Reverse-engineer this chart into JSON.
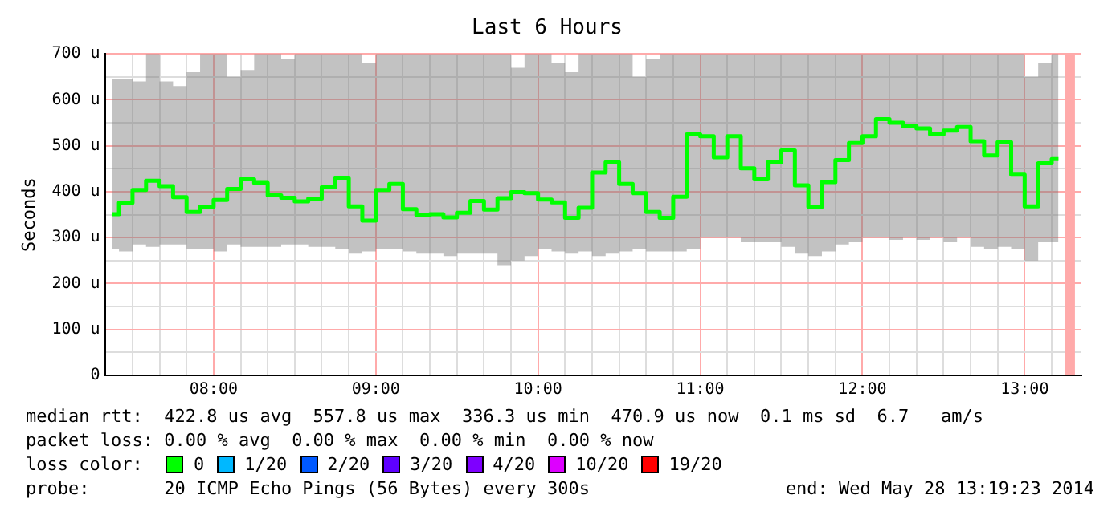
{
  "chart_data": {
    "type": "step",
    "title": "Last 6 Hours",
    "ylabel": "Seconds",
    "legend_title": "loss color:",
    "legend": "bottom",
    "grid": true,
    "xlim": [
      7.33,
      13.35
    ],
    "ylim": [
      0,
      700
    ],
    "xticks": [
      {
        "value": 7.5,
        "label": null
      },
      {
        "value": 7.6667,
        "label": null
      },
      {
        "value": 7.8333,
        "label": null
      },
      {
        "value": 8,
        "label": "08:00"
      },
      {
        "value": 8.1667,
        "label": null
      },
      {
        "value": 8.3333,
        "label": null
      },
      {
        "value": 8.5,
        "label": null
      },
      {
        "value": 8.6667,
        "label": null
      },
      {
        "value": 8.8333,
        "label": null
      },
      {
        "value": 9,
        "label": "09:00"
      },
      {
        "value": 9.1667,
        "label": null
      },
      {
        "value": 9.3333,
        "label": null
      },
      {
        "value": 9.5,
        "label": null
      },
      {
        "value": 9.6667,
        "label": null
      },
      {
        "value": 9.8333,
        "label": null
      },
      {
        "value": 10,
        "label": "10:00"
      },
      {
        "value": 10.1667,
        "label": null
      },
      {
        "value": 10.3333,
        "label": null
      },
      {
        "value": 10.5,
        "label": null
      },
      {
        "value": 10.6667,
        "label": null
      },
      {
        "value": 10.8333,
        "label": null
      },
      {
        "value": 11,
        "label": "11:00"
      },
      {
        "value": 11.1667,
        "label": null
      },
      {
        "value": 11.3333,
        "label": null
      },
      {
        "value": 11.5,
        "label": null
      },
      {
        "value": 11.6667,
        "label": null
      },
      {
        "value": 11.8333,
        "label": null
      },
      {
        "value": 12,
        "label": "12:00"
      },
      {
        "value": 12.1667,
        "label": null
      },
      {
        "value": 12.3333,
        "label": null
      },
      {
        "value": 12.5,
        "label": null
      },
      {
        "value": 12.6667,
        "label": null
      },
      {
        "value": 12.8333,
        "label": null
      },
      {
        "value": 13,
        "label": "13:00"
      },
      {
        "value": 13.1667,
        "label": null
      }
    ],
    "yticks": [
      {
        "value": 0,
        "label": "0"
      },
      {
        "value": 50,
        "label": null
      },
      {
        "value": 100,
        "label": "100 u"
      },
      {
        "value": 150,
        "label": null
      },
      {
        "value": 200,
        "label": "200 u"
      },
      {
        "value": 250,
        "label": null
      },
      {
        "value": 300,
        "label": "300 u"
      },
      {
        "value": 350,
        "label": null
      },
      {
        "value": 400,
        "label": "400 u"
      },
      {
        "value": 450,
        "label": null
      },
      {
        "value": 500,
        "label": "500 u"
      },
      {
        "value": 550,
        "label": null
      },
      {
        "value": 600,
        "label": "600 u"
      },
      {
        "value": 650,
        "label": null
      },
      {
        "value": 700,
        "label": "700 u"
      }
    ],
    "x": [
      7.375,
      7.4583,
      7.5417,
      7.625,
      7.7083,
      7.7917,
      7.875,
      7.9583,
      8.0417,
      8.125,
      8.2083,
      8.2917,
      8.375,
      8.4583,
      8.5417,
      8.625,
      8.7083,
      8.7917,
      8.875,
      8.9583,
      9.0417,
      9.125,
      9.2083,
      9.2917,
      9.375,
      9.4583,
      9.5417,
      9.625,
      9.7083,
      9.7917,
      9.875,
      9.9583,
      10.0417,
      10.125,
      10.2083,
      10.2917,
      10.375,
      10.4583,
      10.5417,
      10.625,
      10.7083,
      10.7917,
      10.875,
      10.9583,
      11.0417,
      11.125,
      11.2083,
      11.2917,
      11.375,
      11.4583,
      11.5417,
      11.625,
      11.7083,
      11.7917,
      11.875,
      11.9583,
      12.0417,
      12.125,
      12.2083,
      12.2917,
      12.375,
      12.4583,
      12.5417,
      12.625,
      12.7083,
      12.7917,
      12.875,
      12.9583,
      13.0417,
      13.125,
      13.2083
    ],
    "series": [
      {
        "name": "0",
        "color": "#00ff00",
        "values": [
          351,
          376,
          404,
          424,
          412,
          388,
          356,
          367,
          382,
          406,
          427,
          419,
          392,
          387,
          379,
          385,
          410,
          429,
          368,
          337,
          404,
          417,
          362,
          349,
          351,
          344,
          354,
          380,
          361,
          386,
          399,
          397,
          383,
          377,
          343,
          365,
          442,
          464,
          417,
          397,
          356,
          343,
          389,
          525,
          521,
          475,
          521,
          451,
          427,
          464,
          490,
          414,
          367,
          421,
          469,
          506,
          521,
          558,
          550,
          543,
          538,
          525,
          533,
          541,
          510,
          479,
          508,
          437,
          368,
          462,
          471
        ],
        "lower": [
          275,
          270,
          285,
          280,
          285,
          285,
          275,
          275,
          270,
          285,
          280,
          280,
          280,
          285,
          285,
          280,
          280,
          275,
          265,
          270,
          275,
          275,
          270,
          265,
          265,
          260,
          265,
          265,
          265,
          240,
          250,
          260,
          275,
          270,
          265,
          270,
          260,
          265,
          270,
          275,
          270,
          270,
          270,
          275,
          300,
          300,
          300,
          290,
          290,
          290,
          280,
          265,
          260,
          270,
          285,
          290,
          300,
          300,
          295,
          300,
          295,
          300,
          290,
          300,
          280,
          275,
          280,
          275,
          250,
          290,
          290
        ],
        "upper": [
          645,
          645,
          640,
          700,
          640,
          630,
          660,
          700,
          700,
          650,
          665,
          700,
          700,
          690,
          700,
          700,
          700,
          700,
          700,
          680,
          700,
          700,
          700,
          700,
          700,
          700,
          700,
          700,
          700,
          700,
          670,
          700,
          700,
          680,
          660,
          700,
          700,
          700,
          700,
          650,
          690,
          700,
          700,
          700,
          700,
          700,
          700,
          700,
          700,
          700,
          700,
          700,
          700,
          700,
          700,
          700,
          700,
          700,
          700,
          700,
          700,
          700,
          700,
          700,
          700,
          700,
          700,
          700,
          650,
          680,
          700
        ]
      },
      {
        "name": "1/20",
        "color": "#00b8ff",
        "values": [
          null,
          null,
          null,
          null,
          null,
          null,
          null,
          null,
          null,
          null,
          null,
          null,
          null,
          null,
          null,
          null,
          null,
          null,
          null,
          null,
          null,
          null,
          null,
          null,
          null,
          null,
          null,
          null,
          null,
          null,
          null,
          null,
          null,
          null,
          null,
          null,
          null,
          null,
          null,
          null,
          null,
          null,
          null,
          null,
          null,
          null,
          null,
          null,
          null,
          null,
          null,
          null,
          null,
          null,
          null,
          null,
          null,
          null,
          null,
          null,
          null,
          null,
          null,
          null,
          null,
          null,
          null,
          null,
          null,
          null,
          null
        ]
      },
      {
        "name": "2/20",
        "color": "#0059ff",
        "values": [
          null,
          null,
          null,
          null,
          null,
          null,
          null,
          null,
          null,
          null,
          null,
          null,
          null,
          null,
          null,
          null,
          null,
          null,
          null,
          null,
          null,
          null,
          null,
          null,
          null,
          null,
          null,
          null,
          null,
          null,
          null,
          null,
          null,
          null,
          null,
          null,
          null,
          null,
          null,
          null,
          null,
          null,
          null,
          null,
          null,
          null,
          null,
          null,
          null,
          null,
          null,
          null,
          null,
          null,
          null,
          null,
          null,
          null,
          null,
          null,
          null,
          null,
          null,
          null,
          null,
          null,
          null,
          null,
          null,
          null,
          null
        ]
      },
      {
        "name": "3/20",
        "color": "#5e00ff",
        "values": [
          null,
          null,
          null,
          null,
          null,
          null,
          null,
          null,
          null,
          null,
          null,
          null,
          null,
          null,
          null,
          null,
          null,
          null,
          null,
          null,
          null,
          null,
          null,
          null,
          null,
          null,
          null,
          null,
          null,
          null,
          null,
          null,
          null,
          null,
          null,
          null,
          null,
          null,
          null,
          null,
          null,
          null,
          null,
          null,
          null,
          null,
          null,
          null,
          null,
          null,
          null,
          null,
          null,
          null,
          null,
          null,
          null,
          null,
          null,
          null,
          null,
          null,
          null,
          null,
          null,
          null,
          null,
          null,
          null,
          null,
          null
        ]
      },
      {
        "name": "4/20",
        "color": "#7e00ff",
        "values": [
          null,
          null,
          null,
          null,
          null,
          null,
          null,
          null,
          null,
          null,
          null,
          null,
          null,
          null,
          null,
          null,
          null,
          null,
          null,
          null,
          null,
          null,
          null,
          null,
          null,
          null,
          null,
          null,
          null,
          null,
          null,
          null,
          null,
          null,
          null,
          null,
          null,
          null,
          null,
          null,
          null,
          null,
          null,
          null,
          null,
          null,
          null,
          null,
          null,
          null,
          null,
          null,
          null,
          null,
          null,
          null,
          null,
          null,
          null,
          null,
          null,
          null,
          null,
          null,
          null,
          null,
          null,
          null,
          null,
          null,
          null
        ]
      },
      {
        "name": "10/20",
        "color": "#dd00ff",
        "values": [
          null,
          null,
          null,
          null,
          null,
          null,
          null,
          null,
          null,
          null,
          null,
          null,
          null,
          null,
          null,
          null,
          null,
          null,
          null,
          null,
          null,
          null,
          null,
          null,
          null,
          null,
          null,
          null,
          null,
          null,
          null,
          null,
          null,
          null,
          null,
          null,
          null,
          null,
          null,
          null,
          null,
          null,
          null,
          null,
          null,
          null,
          null,
          null,
          null,
          null,
          null,
          null,
          null,
          null,
          null,
          null,
          null,
          null,
          null,
          null,
          null,
          null,
          null,
          null,
          null,
          null,
          null,
          null,
          null,
          null,
          null
        ]
      },
      {
        "name": "19/20",
        "color": "#ff0000",
        "values": [
          null,
          null,
          null,
          null,
          null,
          null,
          null,
          null,
          null,
          null,
          null,
          null,
          null,
          null,
          null,
          null,
          null,
          null,
          null,
          null,
          null,
          null,
          null,
          null,
          null,
          null,
          null,
          null,
          null,
          null,
          null,
          null,
          null,
          null,
          null,
          null,
          null,
          null,
          null,
          null,
          null,
          null,
          null,
          null,
          null,
          null,
          null,
          null,
          null,
          null,
          null,
          null,
          null,
          null,
          null,
          null,
          null,
          null,
          null,
          null,
          null,
          null,
          null,
          null,
          null,
          null,
          null,
          null,
          null,
          null,
          null
        ]
      }
    ],
    "bands": [
      {
        "axis": "x",
        "from": 13.25,
        "to": 13.31,
        "color": "#ffaaaa"
      }
    ],
    "annotations": [
      "median rtt:  422.8 us avg  557.8 us max  336.3 us min  470.9 us now  0.1 ms sd  6.7   am/s",
      "packet loss: 0.00 % avg  0.00 % max  0.00 % min  0.00 % now",
      "probe:       20 ICMP Echo Pings (56 Bytes) every 300s",
      "end: Wed May 28 13:19:23 2014"
    ]
  }
}
